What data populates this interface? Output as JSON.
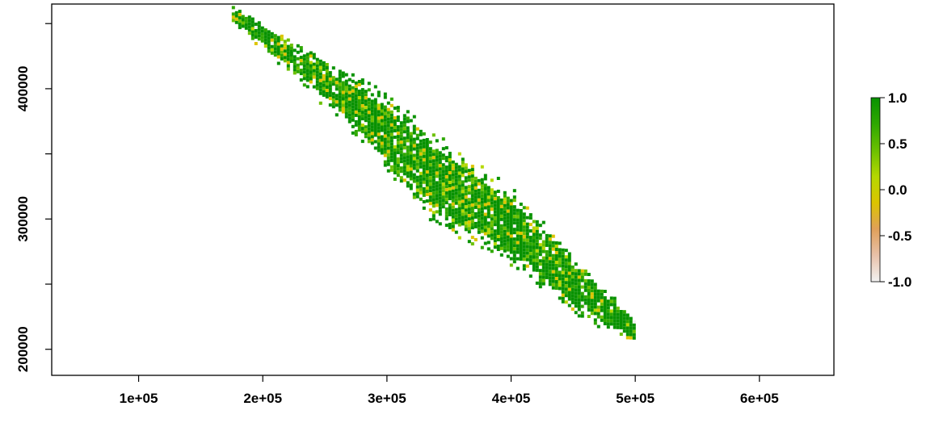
{
  "chart_data": {
    "type": "heatmap",
    "title": "",
    "xlabel": "",
    "ylabel": "",
    "xlim": [
      30000,
      660000
    ],
    "ylim": [
      180000,
      465000
    ],
    "x_ticks": [
      {
        "value": 100000,
        "label": "1e+05"
      },
      {
        "value": 200000,
        "label": "2e+05"
      },
      {
        "value": 300000,
        "label": "3e+05"
      },
      {
        "value": 400000,
        "label": "4e+05"
      },
      {
        "value": 500000,
        "label": "5e+05"
      },
      {
        "value": 600000,
        "label": "6e+05"
      }
    ],
    "y_ticks": [
      {
        "value": 200000,
        "label": "200000"
      },
      {
        "value": 250000,
        "label": ""
      },
      {
        "value": 300000,
        "label": "300000"
      },
      {
        "value": 350000,
        "label": ""
      },
      {
        "value": 400000,
        "label": "400000"
      },
      {
        "value": 450000,
        "label": ""
      }
    ],
    "legend": {
      "placement": "right",
      "range": [
        -1.0,
        1.0
      ],
      "ticks": [
        {
          "value": 1.0,
          "label": "1.0"
        },
        {
          "value": 0.5,
          "label": "0.5"
        },
        {
          "value": 0.0,
          "label": "0.0"
        },
        {
          "value": -0.5,
          "label": "-0.5"
        },
        {
          "value": -1.0,
          "label": "-1.0"
        }
      ],
      "colors": [
        "#f2f2f2",
        "#e8c1a9",
        "#e0a05a",
        "#dcc400",
        "#b5d800",
        "#6bc000",
        "#2ea800",
        "#089200"
      ]
    },
    "raster_extent": {
      "description": "diagonal band of valid cells running from upper-left to lower-right",
      "centerline": [
        [
          175000,
          458000
        ],
        [
          230000,
          420000
        ],
        [
          290000,
          375000
        ],
        [
          340000,
          330000
        ],
        [
          400000,
          295000
        ],
        [
          450000,
          250000
        ],
        [
          500000,
          215000
        ]
      ],
      "half_width": [
        8000,
        15000,
        30000,
        38000,
        32000,
        25000,
        10000
      ],
      "value_distribution": "mostly high (0.6–1.0) with scattered yellow (~0.0–0.3) patches, sparse near edges"
    },
    "grid": false
  }
}
